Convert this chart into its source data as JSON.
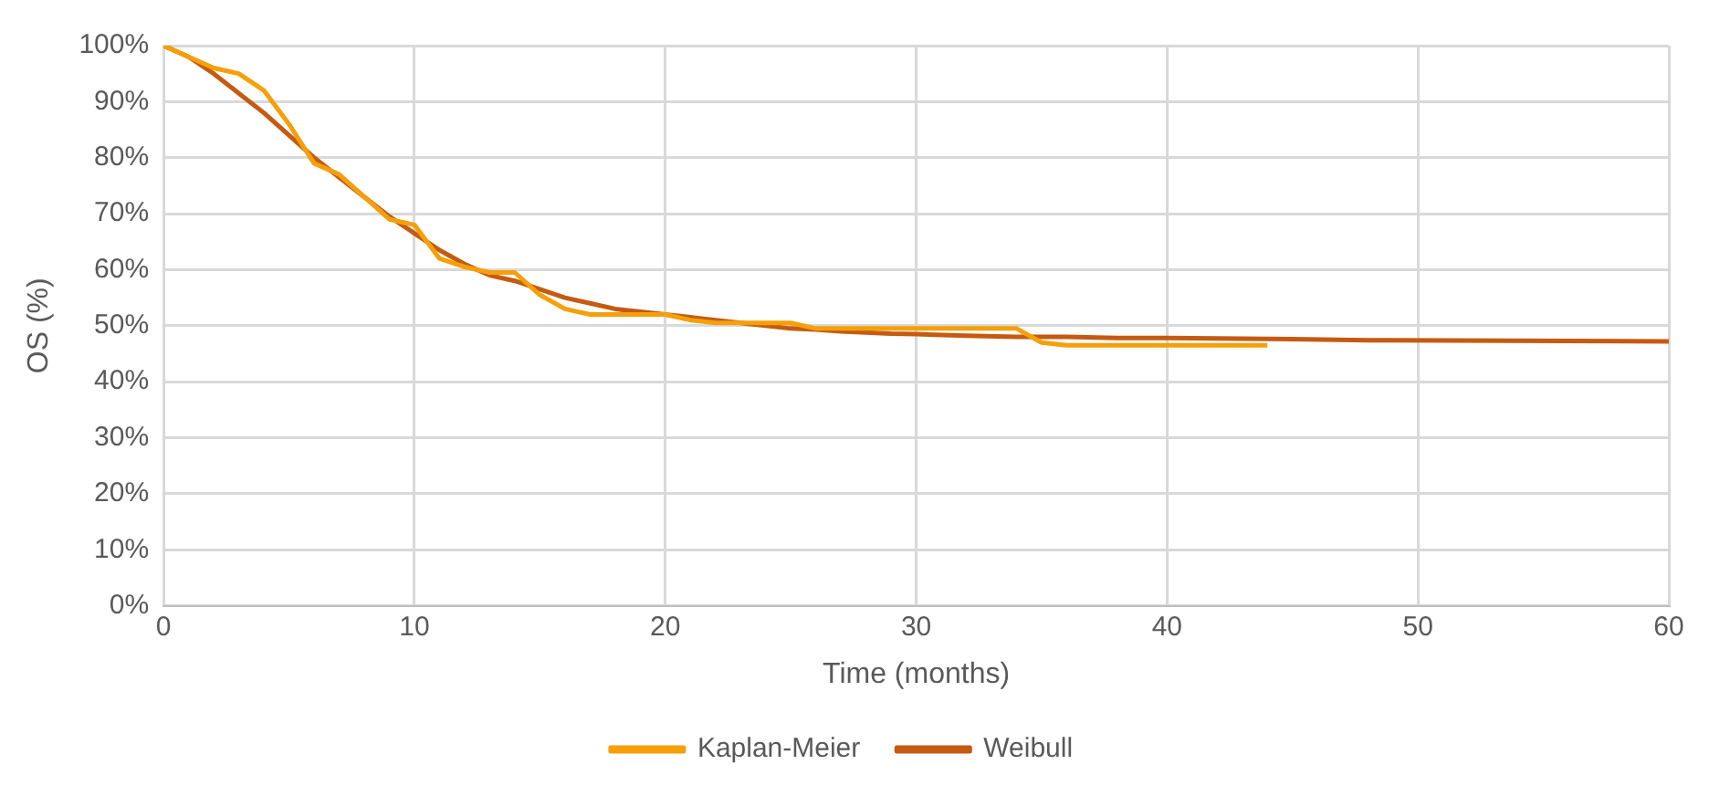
{
  "chart_data": {
    "type": "line",
    "xlabel": "Time (months)",
    "ylabel": "OS (%)",
    "xlim": [
      0,
      60
    ],
    "xticks": [
      0,
      10,
      20,
      30,
      40,
      50,
      60
    ],
    "ylim": [
      0,
      100
    ],
    "yticks": [
      {
        "value": 0,
        "label": "0%"
      },
      {
        "value": 10,
        "label": "10%"
      },
      {
        "value": 20,
        "label": "20%"
      },
      {
        "value": 30,
        "label": "30%"
      },
      {
        "value": 40,
        "label": "40%"
      },
      {
        "value": 50,
        "label": "50%"
      },
      {
        "value": 60,
        "label": "60%"
      },
      {
        "value": 70,
        "label": "70%"
      },
      {
        "value": 80,
        "label": "80%"
      },
      {
        "value": 90,
        "label": "90%"
      },
      {
        "value": 100,
        "label": "100%"
      }
    ],
    "grid": true,
    "legend": "bottom",
    "marker": "none",
    "line_style": "solid",
    "series": [
      {
        "name": "Kaplan-Meier",
        "color": "#f5a00a",
        "x": [
          0,
          1,
          2,
          3,
          4,
          5,
          6,
          7,
          8,
          9,
          10,
          11,
          12,
          13,
          14,
          15,
          16,
          17,
          18,
          19,
          20,
          21,
          22,
          23,
          24,
          25,
          26,
          27,
          28,
          29,
          30,
          31,
          32,
          33,
          34,
          35,
          36,
          37,
          38,
          39,
          40,
          41,
          42,
          43,
          44
        ],
        "values": [
          100,
          98,
          96,
          95,
          92,
          86,
          79,
          77,
          73,
          69,
          68,
          62,
          60.5,
          59.5,
          59.5,
          55.5,
          53,
          52,
          52,
          52,
          52,
          51,
          50.5,
          50.5,
          50.5,
          50.5,
          49.5,
          49.5,
          49.5,
          49.5,
          49.5,
          49.5,
          49.5,
          49.5,
          49.5,
          47,
          46.5,
          46.5,
          46.5,
          46.5,
          46.5,
          46.5,
          46.5,
          46.5,
          46.5
        ]
      },
      {
        "name": "Weibull",
        "color": "#c55a11",
        "x": [
          0,
          1,
          2,
          3,
          4,
          5,
          6,
          7,
          8,
          9,
          10,
          11,
          12,
          13,
          14,
          15,
          16,
          17,
          18,
          19,
          20,
          21,
          22,
          23,
          24,
          25,
          26,
          27,
          28,
          29,
          30,
          32,
          34,
          36,
          38,
          40,
          45,
          48,
          60
        ],
        "values": [
          100,
          98,
          95,
          91.5,
          88,
          84,
          80,
          76.5,
          73,
          69.5,
          66.5,
          63.5,
          61,
          59,
          58,
          56.5,
          55,
          54,
          53,
          52.5,
          52,
          51.5,
          51,
          50.5,
          50,
          49.5,
          49.3,
          49,
          48.8,
          48.6,
          48.5,
          48.2,
          48,
          48,
          47.8,
          47.8,
          47.6,
          47.4,
          47.2
        ]
      }
    ]
  }
}
